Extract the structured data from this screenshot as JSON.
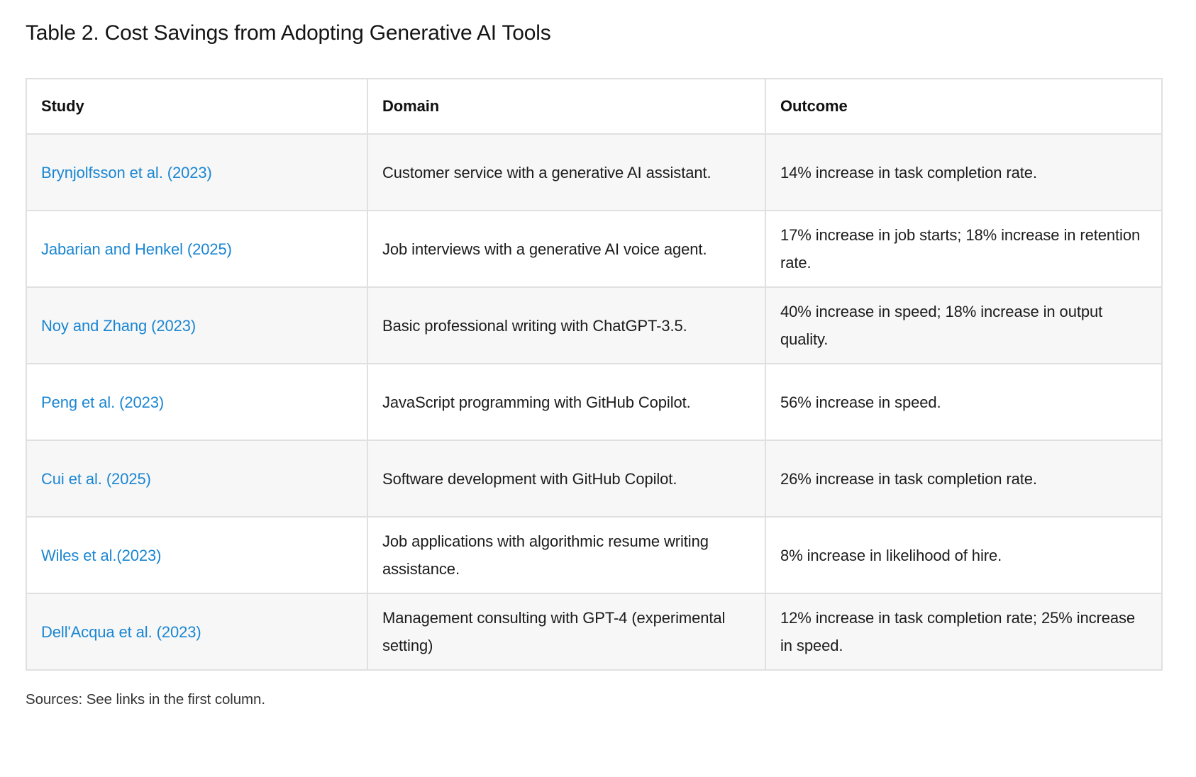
{
  "page": {
    "title": "Table 2. Cost Savings from Adopting Generative AI Tools",
    "source_note": "Sources: See links in the first column."
  },
  "colors": {
    "link_blue": "#1a86d2",
    "row_stripe": "#f7f7f7",
    "table_border": "#e0e0e0"
  },
  "table": {
    "headers": {
      "study": "Study",
      "domain": "Domain",
      "outcome": "Outcome"
    },
    "rows": [
      {
        "study": "Brynjolfsson et al. (2023)",
        "domain": "Customer service with a generative AI assistant.",
        "outcome": "14% increase in task completion rate."
      },
      {
        "study": "Jabarian and Henkel (2025)",
        "domain": "Job interviews with a generative AI voice agent.",
        "outcome": "17% increase in job starts; 18% increase in retention rate."
      },
      {
        "study": "Noy and Zhang (2023)",
        "domain": "Basic professional writing with ChatGPT-3.5.",
        "outcome": "40% increase in speed; 18% increase in output quality."
      },
      {
        "study": "Peng et al. (2023)",
        "domain": "JavaScript programming with GitHub Copilot.",
        "outcome": "56% increase in speed."
      },
      {
        "study": "Cui et al. (2025)",
        "domain": "Software development with GitHub Copilot.",
        "outcome": "26% increase in task completion rate."
      },
      {
        "study": "Wiles et al.(2023)",
        "domain": "Job applications with algorithmic resume writing assistance.",
        "outcome": "8% increase in likelihood of hire."
      },
      {
        "study": "Dell'Acqua et al. (2023)",
        "domain": "Management consulting with GPT-4 (experimental setting)",
        "outcome": "12% increase in task completion rate; 25% increase in speed."
      }
    ]
  }
}
